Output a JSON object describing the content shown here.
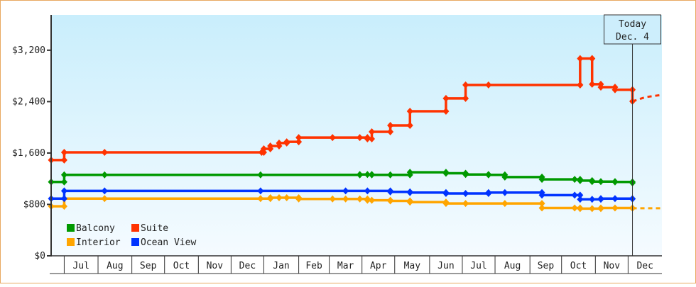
{
  "chart_data": {
    "type": "line",
    "step": true,
    "x_unit": "days since start of chart",
    "xlim": [
      0,
      560
    ],
    "ylim": [
      0,
      3750
    ],
    "yticks": [
      {
        "value": 0,
        "label": "$0"
      },
      {
        "value": 800,
        "label": "$800"
      },
      {
        "value": 1600,
        "label": "$1,600"
      },
      {
        "value": 2400,
        "label": "$2,400"
      },
      {
        "value": 3200,
        "label": "$3,200"
      }
    ],
    "month_boundaries": [
      12,
      43,
      74,
      104,
      135,
      165,
      195,
      227,
      255,
      285,
      315,
      347,
      377,
      407,
      439,
      468,
      499,
      529,
      560
    ],
    "month_labels": [
      "Jul",
      "Aug",
      "Sep",
      "Oct",
      "Nov",
      "Dec",
      "Jan",
      "Feb",
      "Mar",
      "Apr",
      "May",
      "Jun",
      "Jul",
      "Aug",
      "Sep",
      "Oct",
      "Nov",
      "Dec"
    ],
    "today": {
      "day": 533,
      "line1": "Today",
      "line2": "Dec. 4"
    },
    "legend": "bottom-left",
    "series": [
      {
        "name": "Balcony",
        "color": "#009900",
        "points": [
          [
            0,
            1150
          ],
          [
            12,
            1260
          ],
          [
            49,
            1260
          ],
          [
            192,
            1260
          ],
          [
            283,
            1265
          ],
          [
            290,
            1265
          ],
          [
            294,
            1260
          ],
          [
            311,
            1260
          ],
          [
            329,
            1300
          ],
          [
            362,
            1285
          ],
          [
            380,
            1265
          ],
          [
            401,
            1260
          ],
          [
            416,
            1225
          ],
          [
            450,
            1190
          ],
          [
            480,
            1190
          ],
          [
            485,
            1170
          ],
          [
            496,
            1155
          ],
          [
            504,
            1155
          ],
          [
            517,
            1150
          ],
          [
            533,
            1135
          ]
        ]
      },
      {
        "name": "Suite",
        "color": "#ff3300",
        "points": [
          [
            0,
            1490
          ],
          [
            12,
            1610
          ],
          [
            49,
            1610
          ],
          [
            193,
            1610
          ],
          [
            195,
            1665
          ],
          [
            201,
            1710
          ],
          [
            209,
            1755
          ],
          [
            216,
            1775
          ],
          [
            227,
            1840
          ],
          [
            258,
            1840
          ],
          [
            283,
            1840
          ],
          [
            290,
            1820
          ],
          [
            294,
            1930
          ],
          [
            311,
            2030
          ],
          [
            329,
            2250
          ],
          [
            362,
            2450
          ],
          [
            380,
            2660
          ],
          [
            401,
            2660
          ],
          [
            485,
            2660
          ],
          [
            485,
            3070
          ],
          [
            496,
            3070
          ],
          [
            496,
            2670
          ],
          [
            504,
            2625
          ],
          [
            517,
            2585
          ],
          [
            533,
            2585
          ],
          [
            533,
            2405
          ]
        ],
        "projection": [
          [
            533,
            2405
          ],
          [
            545,
            2470
          ],
          [
            560,
            2505
          ]
        ]
      },
      {
        "name": "Interior",
        "color": "#ffa500",
        "points": [
          [
            0,
            770
          ],
          [
            12,
            890
          ],
          [
            49,
            890
          ],
          [
            192,
            890
          ],
          [
            201,
            905
          ],
          [
            209,
            905
          ],
          [
            216,
            905
          ],
          [
            227,
            885
          ],
          [
            258,
            885
          ],
          [
            270,
            885
          ],
          [
            283,
            885
          ],
          [
            290,
            865
          ],
          [
            294,
            865
          ],
          [
            311,
            855
          ],
          [
            329,
            835
          ],
          [
            362,
            815
          ],
          [
            380,
            815
          ],
          [
            416,
            815
          ],
          [
            450,
            745
          ],
          [
            480,
            745
          ],
          [
            485,
            735
          ],
          [
            496,
            735
          ],
          [
            504,
            745
          ],
          [
            517,
            745
          ],
          [
            533,
            740
          ]
        ],
        "projection": [
          [
            533,
            740
          ],
          [
            560,
            740
          ]
        ]
      },
      {
        "name": "Ocean View",
        "color": "#0033ff",
        "points": [
          [
            0,
            890
          ],
          [
            12,
            1010
          ],
          [
            49,
            1010
          ],
          [
            192,
            1010
          ],
          [
            270,
            1010
          ],
          [
            290,
            1010
          ],
          [
            311,
            995
          ],
          [
            329,
            985
          ],
          [
            362,
            970
          ],
          [
            380,
            970
          ],
          [
            401,
            985
          ],
          [
            416,
            985
          ],
          [
            450,
            945
          ],
          [
            480,
            945
          ],
          [
            485,
            880
          ],
          [
            496,
            880
          ],
          [
            504,
            890
          ],
          [
            517,
            890
          ],
          [
            533,
            885
          ]
        ]
      }
    ]
  }
}
